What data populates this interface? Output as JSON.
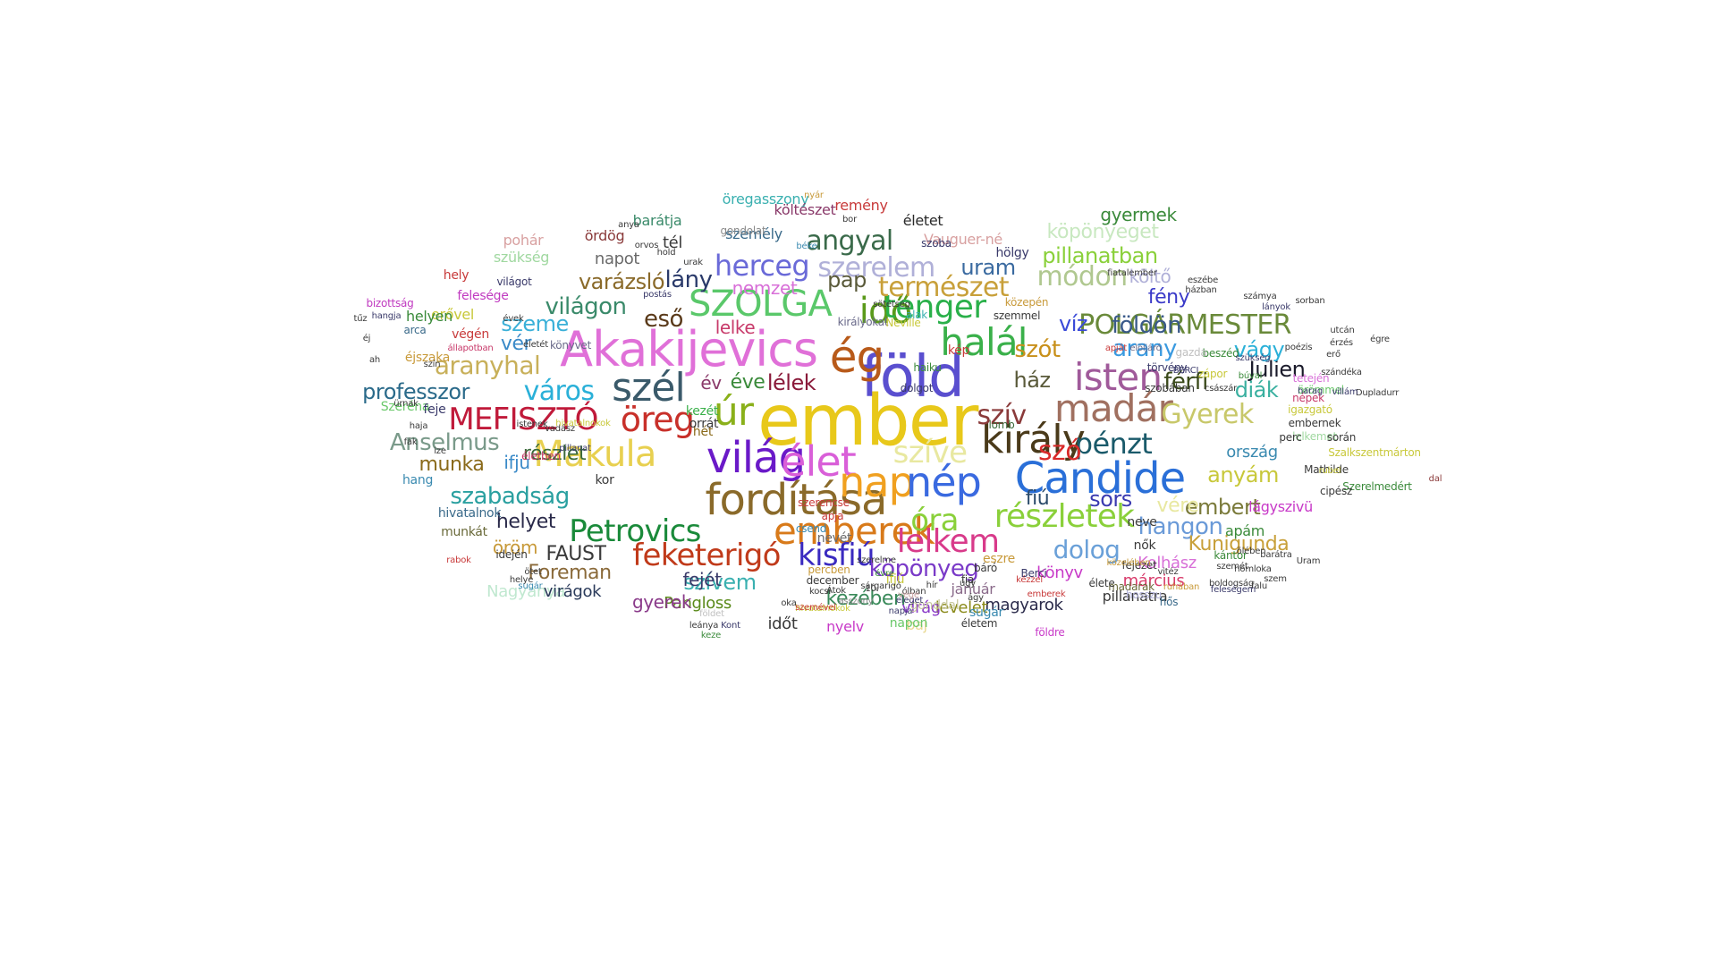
{
  "words": [
    {
      "text": "ember",
      "color": "#e8c81a"
    },
    {
      "text": "föld",
      "color": "#5a4fcf"
    },
    {
      "text": "Akakijevics",
      "color": "#e070d8"
    },
    {
      "text": "ég",
      "color": "#b85a1a"
    },
    {
      "text": "Candide",
      "color": "#2a6fd8"
    },
    {
      "text": "világ",
      "color": "#6a1ac8"
    },
    {
      "text": "fordítása",
      "color": "#8a6a2a"
    },
    {
      "text": "élet",
      "color": "#d95fd8"
    },
    {
      "text": "nap",
      "color": "#f0a020"
    },
    {
      "text": "nép",
      "color": "#3a6ae0"
    },
    {
      "text": "király",
      "color": "#4a3a1a"
    },
    {
      "text": "emberek",
      "color": "#d87a1a"
    },
    {
      "text": "úr",
      "color": "#8ab01a"
    },
    {
      "text": "halál",
      "color": "#3ab04a"
    },
    {
      "text": "idő",
      "color": "#5a9a1a"
    },
    {
      "text": "madár",
      "color": "#a07060"
    },
    {
      "text": "isten",
      "color": "#a05a9a"
    },
    {
      "text": "szél",
      "color": "#3a5a6a"
    },
    {
      "text": "tenger",
      "color": "#2ab04a"
    },
    {
      "text": "SZOLGA",
      "color": "#5ac86a"
    },
    {
      "text": "Makula",
      "color": "#e8d050"
    },
    {
      "text": "öreg",
      "color": "#c8302a"
    },
    {
      "text": "MEFISZTÓ",
      "color": "#c01a3a"
    },
    {
      "text": "Petrovics",
      "color": "#1a8a3a"
    },
    {
      "text": "feketerigó",
      "color": "#c03a1a"
    },
    {
      "text": "kisfiú",
      "color": "#3a2ac0"
    },
    {
      "text": "lelkem",
      "color": "#d83a8a"
    },
    {
      "text": "részletek",
      "color": "#8ad03a"
    },
    {
      "text": "óra",
      "color": "#8ad03a"
    },
    {
      "text": "szíve",
      "color": "#e8e8a0"
    },
    {
      "text": "pénzt",
      "color": "#1a5a6a"
    },
    {
      "text": "szó",
      "color": "#d82a2a"
    },
    {
      "text": "szív",
      "color": "#8a3a3a"
    },
    {
      "text": "Gyerek",
      "color": "#c8c86a"
    },
    {
      "text": "herceg",
      "color": "#6a6ad8"
    },
    {
      "text": "szerelem",
      "color": "#b0b0d8"
    },
    {
      "text": "angyal",
      "color": "#3a6a4a"
    },
    {
      "text": "természet",
      "color": "#c8a03a"
    },
    {
      "text": "POLGÁRMESTER",
      "color": "#6a8a3a"
    },
    {
      "text": "város",
      "color": "#2ab0d8"
    },
    {
      "text": "aranyhal",
      "color": "#c8b05a"
    },
    {
      "text": "Anselmus",
      "color": "#7a9a8a"
    },
    {
      "text": "szabadság",
      "color": "#2aa0a0"
    },
    {
      "text": "köpönyeg",
      "color": "#7a3ac8"
    },
    {
      "text": "dolog",
      "color": "#6aa0d8"
    },
    {
      "text": "hangon",
      "color": "#6a9ad8"
    },
    {
      "text": "FAUST",
      "color": "#3a3a3a"
    },
    {
      "text": "Foreman",
      "color": "#8a6a3a"
    },
    {
      "text": "Julien",
      "color": "#1a1a2a"
    },
    {
      "text": "férfi",
      "color": "#3a4a1a"
    },
    {
      "text": "vágy",
      "color": "#2ab0d8"
    },
    {
      "text": "diák",
      "color": "#3ab0a0"
    },
    {
      "text": "ház",
      "color": "#5a5a3a"
    },
    {
      "text": "arany",
      "color": "#3a9ae0"
    },
    {
      "text": "szót",
      "color": "#c8901a"
    },
    {
      "text": "földön",
      "color": "#3a5a8a"
    },
    {
      "text": "víz",
      "color": "#3a4ad8"
    },
    {
      "text": "fény",
      "color": "#3a3ac8"
    },
    {
      "text": "költő",
      "color": "#b0b0d8"
    },
    {
      "text": "módon",
      "color": "#b0c890"
    },
    {
      "text": "pillanatban",
      "color": "#8ad03a"
    },
    {
      "text": "köpönyeget",
      "color": "#c8e8c0"
    },
    {
      "text": "gyermek",
      "color": "#3a8a3a"
    },
    {
      "text": "uram",
      "color": "#3a6aa0"
    },
    {
      "text": "varázsló",
      "color": "#8a6a2a"
    },
    {
      "text": "lány",
      "color": "#2a3a6a"
    },
    {
      "text": "világon",
      "color": "#3a8a6a"
    },
    {
      "text": "eső",
      "color": "#5a3a1a"
    },
    {
      "text": "nemzet",
      "color": "#d870d8"
    },
    {
      "text": "pap",
      "color": "#5a5a3a"
    },
    {
      "text": "professzor",
      "color": "#2a6a8a"
    },
    {
      "text": "szeme",
      "color": "#3ab0d8"
    },
    {
      "text": "vér",
      "color": "#3a8ac8"
    },
    {
      "text": "lélek",
      "color": "#8a1a3a"
    },
    {
      "text": "éve",
      "color": "#3a8a3a"
    },
    {
      "text": "év",
      "color": "#8a3a6a"
    },
    {
      "text": "lelke",
      "color": "#c83a6a"
    },
    {
      "text": "munka",
      "color": "#8a6a1a"
    },
    {
      "text": "részlet",
      "color": "#3a6a3a"
    },
    {
      "text": "ifju",
      "color": "#3a8ac8"
    },
    {
      "text": "helyet",
      "color": "#2a2a4a"
    },
    {
      "text": "öröm",
      "color": "#c89a3a"
    },
    {
      "text": "anyám",
      "color": "#c8c83a"
    },
    {
      "text": "embert",
      "color": "#7a7a3a"
    },
    {
      "text": "vére",
      "color": "#e8e8a0"
    },
    {
      "text": "sors",
      "color": "#3a3ab0"
    },
    {
      "text": "fiú",
      "color": "#2a4a6a"
    },
    {
      "text": "ország",
      "color": "#3a8ab0"
    },
    {
      "text": "Kunigunda",
      "color": "#c8a03a"
    },
    {
      "text": "apám",
      "color": "#3a8a3a"
    },
    {
      "text": "Kolhász",
      "color": "#d870d8"
    },
    {
      "text": "március",
      "color": "#d83a6a"
    },
    {
      "text": "könyv",
      "color": "#c83ac8"
    },
    {
      "text": "magyarok",
      "color": "#2a2a4a"
    },
    {
      "text": "levelet",
      "color": "#8a8a1a"
    },
    {
      "text": "virág",
      "color": "#8a3ac8"
    },
    {
      "text": "kezében",
      "color": "#3a8a5a"
    },
    {
      "text": "szívem",
      "color": "#3ab0b0"
    },
    {
      "text": "fejét",
      "color": "#3a3a6a"
    },
    {
      "text": "Pangloss",
      "color": "#5a8a1a"
    },
    {
      "text": "Nagyanya",
      "color": "#c0e8d0"
    },
    {
      "text": "gyerek",
      "color": "#8a3a8a"
    },
    {
      "text": "virágok",
      "color": "#2a3a5a"
    },
    {
      "text": "időt",
      "color": "#3a3a3a"
    },
    {
      "text": "nyelv",
      "color": "#c83ac8"
    },
    {
      "text": "baj",
      "color": "#e8d890"
    },
    {
      "text": "január",
      "color": "#8a6a8a"
    },
    {
      "text": "lágyszivü",
      "color": "#c83ac8"
    },
    {
      "text": "öregasszony",
      "color": "#3ab0b0"
    },
    {
      "text": "remény",
      "color": "#c83a3a"
    },
    {
      "text": "költészet",
      "color": "#8a3a6a"
    },
    {
      "text": "barátja",
      "color": "#3a8a6a"
    },
    {
      "text": "személy",
      "color": "#3a6a8a"
    },
    {
      "text": "tél",
      "color": "#3a3a3a"
    },
    {
      "text": "életet",
      "color": "#2a2a2a"
    },
    {
      "text": "Vauguer-né",
      "color": "#d8a0a0"
    },
    {
      "text": "pohár",
      "color": "#d8a0a0"
    },
    {
      "text": "ördög",
      "color": "#8a3a3a"
    },
    {
      "text": "napot",
      "color": "#6a6a6a"
    },
    {
      "text": "szükség",
      "color": "#a0d8a0"
    },
    {
      "text": "hely",
      "color": "#c83a3a"
    },
    {
      "text": "világot",
      "color": "#3a3a6a"
    },
    {
      "text": "felesége",
      "color": "#c03ac0"
    },
    {
      "text": "erővel",
      "color": "#c8c83a"
    },
    {
      "text": "helyen",
      "color": "#3a8a3a"
    },
    {
      "text": "végén",
      "color": "#c83a3a"
    },
    {
      "text": "éjszaka",
      "color": "#c89a3a"
    },
    {
      "text": "Szeréna",
      "color": "#6ac86a"
    },
    {
      "text": "feje",
      "color": "#3a3a6a"
    },
    {
      "text": "hang",
      "color": "#3a8ab0"
    },
    {
      "text": "hivatalnok",
      "color": "#3a6a8a"
    },
    {
      "text": "munkát",
      "color": "#6a6a3a"
    },
    {
      "text": "idején",
      "color": "#3a3a3a"
    },
    {
      "text": "hölgy",
      "color": "#3a3a6a"
    },
    {
      "text": "gondolat",
      "color": "#8a8a8a"
    },
    {
      "text": "szoba",
      "color": "#3a3a6a"
    },
    {
      "text": "dal",
      "color": "#8a3a3a"
    },
    {
      "text": "hét",
      "color": "#8a6a1a"
    },
    {
      "text": "kezét",
      "color": "#3ab04a"
    },
    {
      "text": "orrát",
      "color": "#3a3a3a"
    },
    {
      "text": "kor",
      "color": "#3a3a3a"
    },
    {
      "text": "szerencse",
      "color": "#c83a3a"
    },
    {
      "text": "apja",
      "color": "#c83a3a"
    },
    {
      "text": "csend",
      "color": "#3a8ab0"
    },
    {
      "text": "nevét",
      "color": "#6a6a6a"
    },
    {
      "text": "gonddal",
      "color": "#c8c8a0"
    },
    {
      "text": "eszre",
      "color": "#c89a3a"
    },
    {
      "text": "madarak",
      "color": "#6a6a3a"
    },
    {
      "text": "pillanatra",
      "color": "#3a3a3a"
    },
    {
      "text": "sugár",
      "color": "#3a8ab0"
    },
    {
      "text": "életem",
      "color": "#3a3a3a"
    },
    {
      "text": "földre",
      "color": "#c83ac8"
    },
    {
      "text": "napon",
      "color": "#6ac86a"
    },
    {
      "text": "hosszu",
      "color": "#b0b0d8"
    },
    {
      "text": "fejezet",
      "color": "#3a3a3a"
    },
    {
      "text": "nők",
      "color": "#3a3a3a"
    },
    {
      "text": "élete",
      "color": "#3a3a3a"
    },
    {
      "text": "hős",
      "color": "#3a6a8a"
    },
    {
      "text": "neve",
      "color": "#3a3a3a"
    },
    {
      "text": "lomb",
      "color": "#3a6a3a"
    },
    {
      "text": "kép",
      "color": "#c83a3a"
    },
    {
      "text": "haiku",
      "color": "#3a8a3a"
    },
    {
      "text": "dolgot",
      "color": "#3a3a6a"
    },
    {
      "text": "szobában",
      "color": "#3a3a3a"
    },
    {
      "text": "törvény",
      "color": "#3a3a6a"
    },
    {
      "text": "beszéd",
      "color": "#3a8a3a"
    },
    {
      "text": "tetején",
      "color": "#d870d8"
    },
    {
      "text": "népek",
      "color": "#c83a6a"
    },
    {
      "text": "örömmel",
      "color": "#6ac86a"
    },
    {
      "text": "igazgató",
      "color": "#c8c83a"
    },
    {
      "text": "embernek",
      "color": "#3a3a3a"
    },
    {
      "text": "lelkemet",
      "color": "#a0d8a0"
    },
    {
      "text": "perc",
      "color": "#3a3a3a"
    },
    {
      "text": "során",
      "color": "#3a3a3a"
    },
    {
      "text": "Szalkszentmárton",
      "color": "#c8c83a"
    },
    {
      "text": "Mathilde",
      "color": "#3a3a3a"
    },
    {
      "text": "Szerelmedért",
      "color": "#3a8a3a"
    },
    {
      "text": "cipész",
      "color": "#3a3a3a"
    },
    {
      "text": "rubel",
      "color": "#c8c83a"
    },
    {
      "text": "kántor",
      "color": "#3a8a3a"
    },
    {
      "text": "Uram",
      "color": "#3a3a3a"
    },
    {
      "text": "Berci",
      "color": "#3a3a6a"
    },
    {
      "text": "fia",
      "color": "#3a3a3a"
    },
    {
      "text": "hír",
      "color": "#3a3a3a"
    },
    {
      "text": "ifjú",
      "color": "#c8c83a"
    },
    {
      "text": "percben",
      "color": "#c89a3a"
    },
    {
      "text": "december",
      "color": "#3a3a3a"
    },
    {
      "text": "kocsi",
      "color": "#3a3a3a"
    },
    {
      "text": "eleget",
      "color": "#3a3a6a"
    },
    {
      "text": "Átok",
      "color": "#3a3a3a"
    },
    {
      "text": "hivatalnokok",
      "color": "#c8c83a"
    },
    {
      "text": "napja",
      "color": "#3a3a6a"
    },
    {
      "text": "szemével",
      "color": "#c83a3a"
    },
    {
      "text": "sárgarigó",
      "color": "#3a3a3a"
    },
    {
      "text": "asszony",
      "color": "#8a8a8a"
    },
    {
      "text": "postás",
      "color": "#3a3a6a"
    },
    {
      "text": "nyár",
      "color": "#c89a3a"
    },
    {
      "text": "bor",
      "color": "#3a3a3a"
    },
    {
      "text": "anya",
      "color": "#3a3a3a"
    },
    {
      "text": "urak",
      "color": "#3a3a3a"
    },
    {
      "text": "béke",
      "color": "#3a8ab0"
    },
    {
      "text": "hold",
      "color": "#3a3a3a"
    },
    {
      "text": "orvos",
      "color": "#3a3a3a"
    },
    {
      "text": "közepén",
      "color": "#c89a3a"
    },
    {
      "text": "szemmel",
      "color": "#3a3a3a"
    },
    {
      "text": "királyokat",
      "color": "#6a6a8a"
    },
    {
      "text": "Neville",
      "color": "#c8c83a"
    },
    {
      "text": "alak",
      "color": "#3ab0b0"
    },
    {
      "text": "sötétség",
      "color": "#3a3a3a"
    },
    {
      "text": "bizottság",
      "color": "#c03ac0"
    },
    {
      "text": "hangja",
      "color": "#3a3a6a"
    },
    {
      "text": "tűz",
      "color": "#3a3a3a"
    },
    {
      "text": "arca",
      "color": "#3a6a8a"
    },
    {
      "text": "éj",
      "color": "#3a3a3a"
    },
    {
      "text": "ah",
      "color": "#3a3a3a"
    },
    {
      "text": "ürnak",
      "color": "#3a3a3a"
    },
    {
      "text": "haja",
      "color": "#3a3a3a"
    },
    {
      "text": "fák",
      "color": "#3a3a3a"
    },
    {
      "text": "ize",
      "color": "#3a3a3a"
    },
    {
      "text": "vadász",
      "color": "#3a3a3a"
    },
    {
      "text": "istenek",
      "color": "#3a3a3a"
    },
    {
      "text": "életben",
      "color": "#c83a6a"
    },
    {
      "text": "pillanat",
      "color": "#3a3a6a"
    },
    {
      "text": "hivatalnokok",
      "color": "#c8c83a"
    },
    {
      "text": "évek",
      "color": "#3a3a3a"
    },
    {
      "text": "életét",
      "color": "#3a3a3a"
    },
    {
      "text": "szín",
      "color": "#3a3a3a"
    },
    {
      "text": "állapotban",
      "color": "#c83a6a"
    },
    {
      "text": "könyvet",
      "color": "#6a6a8a"
    },
    {
      "text": "apját",
      "color": "#c83a3a"
    },
    {
      "text": "elöljáró",
      "color": "#6a6a8a"
    },
    {
      "text": "gazda",
      "color": "#c0c0c0"
    },
    {
      "text": "zápor",
      "color": "#c8c83a"
    },
    {
      "text": "császár",
      "color": "#3a3a3a"
    },
    {
      "text": "poézis",
      "color": "#3a3a3a"
    },
    {
      "text": "szükség",
      "color": "#3a3a6a"
    },
    {
      "text": "harag",
      "color": "#3a3a6a"
    },
    {
      "text": "Dupladurr",
      "color": "#3a3a3a"
    },
    {
      "text": "szándéka",
      "color": "#3a3a3a"
    },
    {
      "text": "villám",
      "color": "#3a3a6a"
    },
    {
      "text": "búval",
      "color": "#3a8a3a"
    },
    {
      "text": "BERCI",
      "color": "#3a3a6a"
    },
    {
      "text": "fiatalember",
      "color": "#3a3a3a"
    },
    {
      "text": "eszébe",
      "color": "#3a3a3a"
    },
    {
      "text": "házban",
      "color": "#3a3a3a"
    },
    {
      "text": "számya",
      "color": "#3a3a3a"
    },
    {
      "text": "lányok",
      "color": "#3a3a6a"
    },
    {
      "text": "sorban",
      "color": "#3a3a3a"
    },
    {
      "text": "égre",
      "color": "#3a3a3a"
    },
    {
      "text": "utcán",
      "color": "#3a3a3a"
    },
    {
      "text": "érzés",
      "color": "#3a3a3a"
    },
    {
      "text": "erő",
      "color": "#3a3a3a"
    },
    {
      "text": "ölében",
      "color": "#3a3a3a"
    },
    {
      "text": "barátra",
      "color": "#3a3a3a"
    },
    {
      "text": "homloka",
      "color": "#3a3a3a"
    },
    {
      "text": "szem",
      "color": "#3a3a3a"
    },
    {
      "text": "falu",
      "color": "#3a3a3a"
    },
    {
      "text": "szemét",
      "color": "#3a3a3a"
    },
    {
      "text": "boldogság",
      "color": "#3a3a3a"
    },
    {
      "text": "feleségem",
      "color": "#3a3a6a"
    },
    {
      "text": "közelében",
      "color": "#c89a3a"
    },
    {
      "text": "ruhában",
      "color": "#c89a3a"
    },
    {
      "text": "vitéz",
      "color": "#3a3a3a"
    },
    {
      "text": "kézzel",
      "color": "#c83a3a"
    },
    {
      "text": "emberek",
      "color": "#c83a3a"
    },
    {
      "text": "ágy",
      "color": "#3a3a3a"
    },
    {
      "text": "ólban",
      "color": "#3a3a3a"
    },
    {
      "text": "vége",
      "color": "#c8a0a0"
    },
    {
      "text": "Kont",
      "color": "#3a3a6a"
    },
    {
      "text": "leánya",
      "color": "#3a3a3a"
    },
    {
      "text": "keze",
      "color": "#3a8a3a"
    },
    {
      "text": "földet",
      "color": "#c0c0c0"
    },
    {
      "text": "oka",
      "color": "#3a3a3a"
    },
    {
      "text": "10.",
      "color": "#3a3a3a"
    },
    {
      "text": "szerelme",
      "color": "#3a3a3a"
    },
    {
      "text": "évre",
      "color": "#3a8a3a"
    },
    {
      "text": "úgy",
      "color": "#3a3a3a"
    },
    {
      "text": "báró",
      "color": "#3a3a3a"
    },
    {
      "text": "rabok",
      "color": "#c83a3a"
    },
    {
      "text": "helye",
      "color": "#3a3a3a"
    },
    {
      "text": "ötet",
      "color": "#3a3a3a"
    },
    {
      "text": "sugár",
      "color": "#3a8ab0"
    }
  ]
}
